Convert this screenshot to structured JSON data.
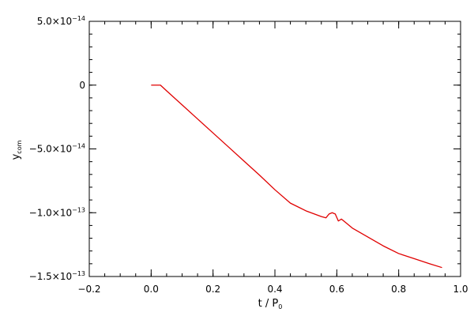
{
  "chart_data": {
    "type": "line",
    "xlabel": "t / P",
    "xlabel_sub": "0",
    "ylabel": "y",
    "ylabel_sub": "com",
    "xlim": [
      -0.2,
      1.0
    ],
    "ylim": [
      -1.5e-13,
      5e-14
    ],
    "grid": false,
    "x_ticks": [
      {
        "value": -0.2,
        "label": "−0.2"
      },
      {
        "value": 0.0,
        "label": "0.0"
      },
      {
        "value": 0.2,
        "label": "0.2"
      },
      {
        "value": 0.4,
        "label": "0.4"
      },
      {
        "value": 0.6,
        "label": "0.6"
      },
      {
        "value": 0.8,
        "label": "0.8"
      },
      {
        "value": 1.0,
        "label": "1.0"
      }
    ],
    "y_ticks": [
      {
        "value": 5e-14,
        "mantissa": "5.0×10",
        "exp": "−14",
        "plain": ""
      },
      {
        "value": 0,
        "mantissa": "",
        "exp": "",
        "plain": "0"
      },
      {
        "value": -5e-14,
        "mantissa": "−5.0×10",
        "exp": "−14",
        "plain": ""
      },
      {
        "value": -1e-13,
        "mantissa": "−1.0×10",
        "exp": "−13",
        "plain": ""
      },
      {
        "value": -1.5e-13,
        "mantissa": "−1.5×10",
        "exp": "−13",
        "plain": ""
      }
    ],
    "series": [
      {
        "color": "#e00000",
        "x": [
          0.0,
          0.03,
          0.05,
          0.1,
          0.15,
          0.2,
          0.25,
          0.3,
          0.35,
          0.4,
          0.45,
          0.5,
          0.55,
          0.565,
          0.575,
          0.585,
          0.595,
          0.605,
          0.615,
          0.625,
          0.65,
          0.7,
          0.75,
          0.8,
          0.85,
          0.9,
          0.94
        ],
        "y": [
          0,
          0,
          -4.5e-15,
          -1.55e-14,
          -2.65e-14,
          -3.75e-14,
          -4.85e-14,
          -5.95e-14,
          -7.05e-14,
          -8.2e-14,
          -9.25e-14,
          -9.85e-14,
          -1.03e-13,
          -1.04e-13,
          -1.01e-13,
          -1e-13,
          -1.01e-13,
          -1.065e-13,
          -1.05e-13,
          -1.07e-13,
          -1.12e-13,
          -1.19e-13,
          -1.26e-13,
          -1.32e-13,
          -1.36e-13,
          -1.4e-13,
          -1.43e-13
        ]
      }
    ]
  }
}
